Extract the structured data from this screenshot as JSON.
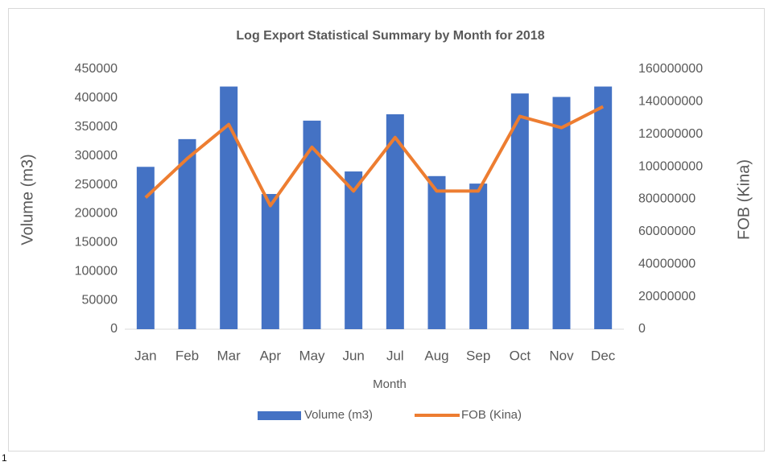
{
  "chart_data": {
    "type": "bar_line",
    "title": "Log Export Statistical Summary by Month for 2018",
    "x_label": "Month",
    "y_label": "Volume (m3)",
    "y2_label": "FOB (Kina)",
    "categories": [
      "Jan",
      "Feb",
      "Mar",
      "Apr",
      "May",
      "Jun",
      "Jul",
      "Aug",
      "Sep",
      "Oct",
      "Nov",
      "Dec"
    ],
    "series": [
      {
        "name": "Volume (m3)",
        "type": "bar",
        "color": "#4472c4",
        "values": [
          281000,
          329000,
          420000,
          234000,
          361000,
          273000,
          372000,
          265000,
          252000,
          408000,
          402000,
          420000
        ]
      },
      {
        "name": "FOB (Kina)",
        "type": "line",
        "color": "#ed7d31",
        "axis": "y2",
        "values": [
          81000000,
          105000000,
          126000000,
          76000000,
          112000000,
          85000000,
          118000000,
          85000000,
          85000000,
          131000000,
          124000000,
          137000000
        ]
      }
    ],
    "ylim": [
      0,
      450000
    ],
    "yticks": [
      0,
      50000,
      100000,
      150000,
      200000,
      250000,
      300000,
      350000,
      400000,
      450000
    ],
    "y2lim": [
      0,
      160000000
    ],
    "y2ticks": [
      0,
      20000000,
      40000000,
      60000000,
      80000000,
      100000000,
      120000000,
      140000000,
      160000000
    ],
    "grid": false,
    "legend": "bottom",
    "annotations": [
      "1"
    ]
  }
}
